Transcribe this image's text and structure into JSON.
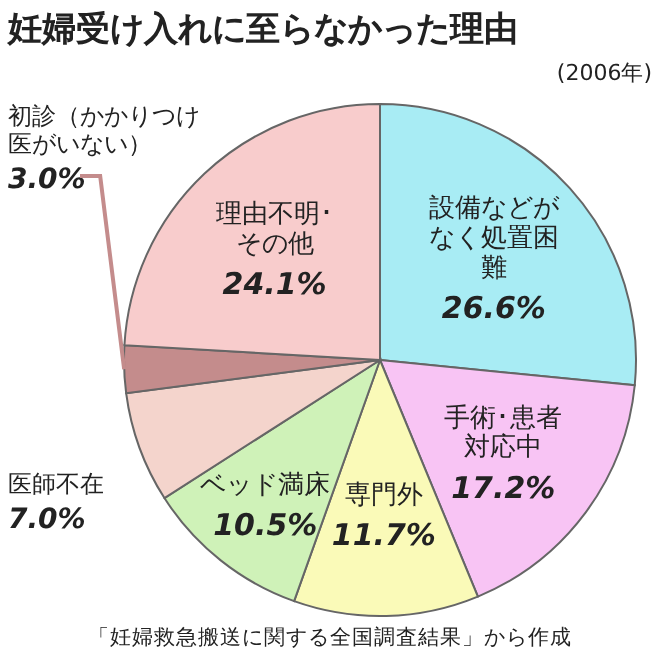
{
  "chart_data": {
    "type": "pie",
    "title": "妊婦受け入れに至らなかった理由",
    "subtitle": "(2006年)",
    "categories": [
      "設備などがなく処置困難",
      "手術･患者対応中",
      "専門外",
      "ベッド満床",
      "医師不在",
      "初診（かかりつけ医がいない）",
      "理由不明･その他"
    ],
    "values": [
      26.6,
      17.2,
      11.7,
      10.5,
      7.0,
      3.0,
      24.1
    ],
    "colors": [
      "#a8ecf4",
      "#f8c4f4",
      "#fafab8",
      "#cff2b8",
      "#f4d4cc",
      "#c48c8c",
      "#f8cccc"
    ],
    "value_labels": [
      "26.6%",
      "17.2%",
      "11.7%",
      "10.5%",
      "7.0%",
      "3.0%",
      "24.1%"
    ],
    "annotations": [
      "「妊婦救急搬送に関する全国調査結果」から作成"
    ]
  }
}
